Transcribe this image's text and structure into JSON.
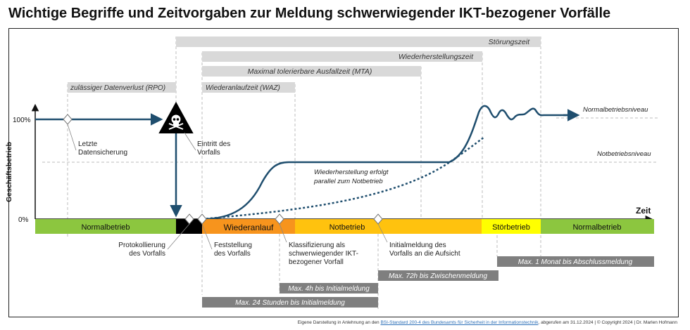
{
  "title": "Wichtige Begriffe und Zeitvorgaben zur Meldung schwerwiegender IKT-bezogener Vorfälle",
  "time_bars": [
    {
      "id": "stoerungszeit",
      "label": "Störungszeit"
    },
    {
      "id": "wiederherstellungszeit",
      "label": "Wiederherstellungszeit"
    },
    {
      "id": "mta",
      "label": "Maximal tolerierbare Ausfallzeit (MTA)"
    },
    {
      "id": "rpo",
      "label": "zulässiger Datenverlust (RPO)"
    },
    {
      "id": "waz",
      "label": "Wiederanlaufzeit (WAZ)"
    }
  ],
  "axis": {
    "y_label": "Geschäftsbetrieb",
    "x_label": "Zeit",
    "tick_100": "100%",
    "tick_0": "0%"
  },
  "levels": {
    "normal": "Normalbetriebsniveau",
    "not": "Notbetriebsniveau"
  },
  "curve_note": [
    "Wiederherstellung erfolgt",
    "parallel zum Notbetrieb"
  ],
  "phases": [
    {
      "id": "normal1",
      "label": "Normalbetrieb",
      "color": "#8cc63f"
    },
    {
      "id": "incident",
      "label": "",
      "color": "#000000"
    },
    {
      "id": "wiederanlauf",
      "label": "Wiederanlauf",
      "color": "#f7941d"
    },
    {
      "id": "notbetrieb",
      "label": "Notbetrieb",
      "color": "#ffc20e"
    },
    {
      "id": "stoerbetrieb",
      "label": "Störbetrieb",
      "color": "#ffff00"
    },
    {
      "id": "normal2",
      "label": "Normalbetrieb",
      "color": "#8cc63f"
    }
  ],
  "events": {
    "sicherung": [
      "Letzte",
      "Datensicherung"
    ],
    "eintritt": [
      "Eintritt des",
      "Vorfalls"
    ],
    "protokollierung": [
      "Protokollierung",
      "des Vorfalls"
    ],
    "feststellung": [
      "Feststellung",
      "des Vorfalls"
    ],
    "klassifizierung": [
      "Klassifizierung als",
      "schwerwiegender IKT-",
      "bezogener Vorfall"
    ],
    "initialmeldung": [
      "Initialmeldung des",
      "Vorfalls an die Aufsicht"
    ]
  },
  "deadlines": [
    {
      "id": "max4h",
      "label": "Max. 4h bis Initialmeldung"
    },
    {
      "id": "max24h",
      "label": "Max. 24 Stunden bis Initialmeldung"
    },
    {
      "id": "max72h",
      "label": "Max. 72h bis Zwischenmeldung"
    },
    {
      "id": "max1m",
      "label": "Max. 1 Monat bis Abschlussmeldung"
    }
  ],
  "footer": {
    "prefix": "Eigene Darstellung in Anlehnung an den ",
    "link": "BSI-Standard 200-4 des Bundesamts für Sicherheit in der Informationstechnik",
    "suffix": ", abgerufen am 31.12.2024 | © Copyright 2024 | Dr. Marlen Hofmann"
  },
  "colors": {
    "curve": "#1f4e6e",
    "bar_light": "#d9d9d9",
    "bar_dark": "#7f7f7f",
    "normal": "#8cc63f",
    "wiederanlauf": "#f7941d",
    "notbetrieb": "#ffc20e",
    "stoerbetrieb": "#ffff00"
  }
}
